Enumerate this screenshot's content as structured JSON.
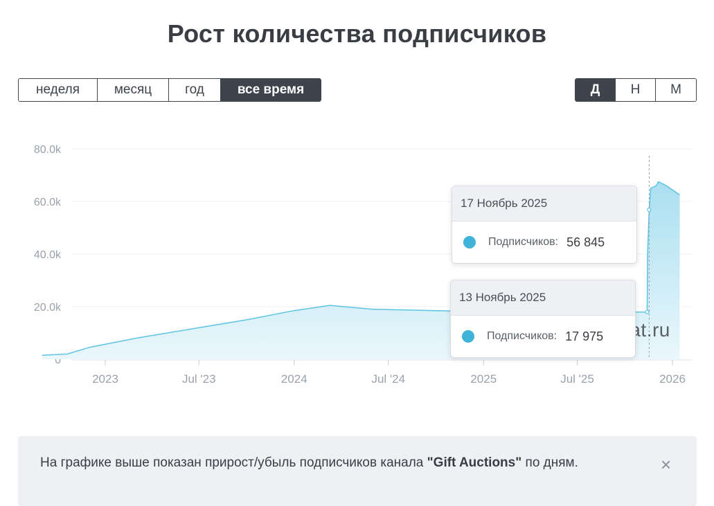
{
  "page": {
    "title": "Рост количества подписчиков"
  },
  "range_buttons": [
    {
      "label": "неделя",
      "active": false
    },
    {
      "label": "месяц",
      "active": false
    },
    {
      "label": "год",
      "active": false
    },
    {
      "label": "все время",
      "active": true
    }
  ],
  "granularity_buttons": [
    {
      "label": "Д",
      "active": true
    },
    {
      "label": "Н",
      "active": false
    },
    {
      "label": "М",
      "active": false
    }
  ],
  "colors": {
    "area_top": "#a9dff0",
    "area_bottom": "#eaf7fc",
    "line": "#5cc3e3",
    "dot": "#3fb3d8"
  },
  "chart_data": {
    "type": "area",
    "ylim": [
      0,
      80000
    ],
    "y_ticks": [
      "0",
      "20.0k",
      "40.0k",
      "60.0k",
      "80.0k"
    ],
    "x_ticks": [
      "2023",
      "Jul '23",
      "2024",
      "Jul '24",
      "2025",
      "Jul '25",
      "2026"
    ],
    "x_tick_dates": [
      "2023-01-01",
      "2023-07-01",
      "2024-01-01",
      "2024-07-01",
      "2025-01-01",
      "2025-07-01",
      "2026-01-01"
    ],
    "grid": true,
    "series": [
      {
        "name": "Подписчиков",
        "points": [
          [
            "2022-09-01",
            1500
          ],
          [
            "2022-10-20",
            2000
          ],
          [
            "2022-12-01",
            4500
          ],
          [
            "2023-03-01",
            8000
          ],
          [
            "2023-07-01",
            12000
          ],
          [
            "2023-10-01",
            15000
          ],
          [
            "2024-01-01",
            18500
          ],
          [
            "2024-03-10",
            20500
          ],
          [
            "2024-06-01",
            19000
          ],
          [
            "2024-09-01",
            18600
          ],
          [
            "2024-12-01",
            18200
          ],
          [
            "2025-04-01",
            18000
          ],
          [
            "2025-08-01",
            17900
          ],
          [
            "2025-11-13",
            17975
          ],
          [
            "2025-11-14",
            40000
          ],
          [
            "2025-11-17",
            56845
          ],
          [
            "2025-11-20",
            65000
          ],
          [
            "2025-12-01",
            66000
          ],
          [
            "2025-12-05",
            67500
          ],
          [
            "2025-12-20",
            66000
          ],
          [
            "2026-01-15",
            62500
          ]
        ]
      }
    ],
    "tooltips": [
      {
        "date": "17 Ноябрь 2025",
        "label": "Подписчиков:",
        "value": "56 845"
      },
      {
        "date": "13 Ноябрь 2025",
        "label": "Подписчиков:",
        "value": "17 975"
      }
    ]
  },
  "watermark": "TGStat.ru",
  "notice": {
    "text_before": "На графике выше показан прирост/убыль подписчиков канала ",
    "channel": "\"Gift Auctions\"",
    "text_after": " по дням.",
    "close_icon": "×"
  }
}
